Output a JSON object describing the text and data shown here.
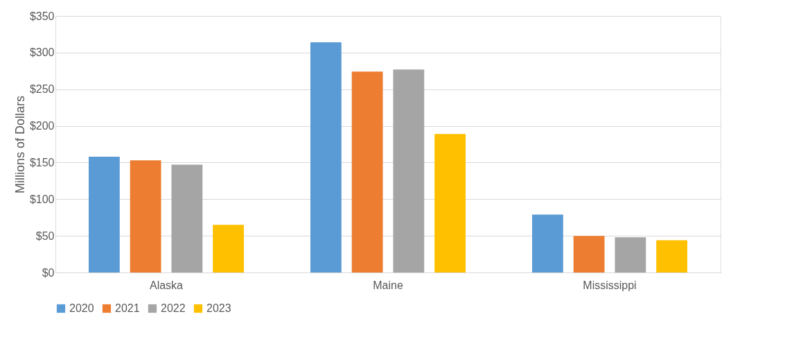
{
  "chart_data": {
    "type": "bar",
    "ylabel": "Millions of Dollars",
    "categories": [
      "Alaska",
      "Maine",
      "Mississippi"
    ],
    "series": [
      {
        "name": "2020",
        "color": "#5b9bd5",
        "values": [
          158,
          314,
          79
        ]
      },
      {
        "name": "2021",
        "color": "#ed7d31",
        "values": [
          153,
          274,
          50
        ]
      },
      {
        "name": "2022",
        "color": "#a5a5a5",
        "values": [
          147,
          277,
          48
        ]
      },
      {
        "name": "2023",
        "color": "#ffc000",
        "values": [
          65,
          189,
          44
        ]
      }
    ],
    "ylim": [
      0,
      350
    ],
    "yticks": [
      {
        "value": 0,
        "label": "$0"
      },
      {
        "value": 50,
        "label": "$50"
      },
      {
        "value": 100,
        "label": "$100"
      },
      {
        "value": 150,
        "label": "$150"
      },
      {
        "value": 200,
        "label": "$200"
      },
      {
        "value": 250,
        "label": "$250"
      },
      {
        "value": 300,
        "label": "$300"
      },
      {
        "value": 350,
        "label": "$350"
      }
    ],
    "grid": "y",
    "legend": "bottom"
  }
}
